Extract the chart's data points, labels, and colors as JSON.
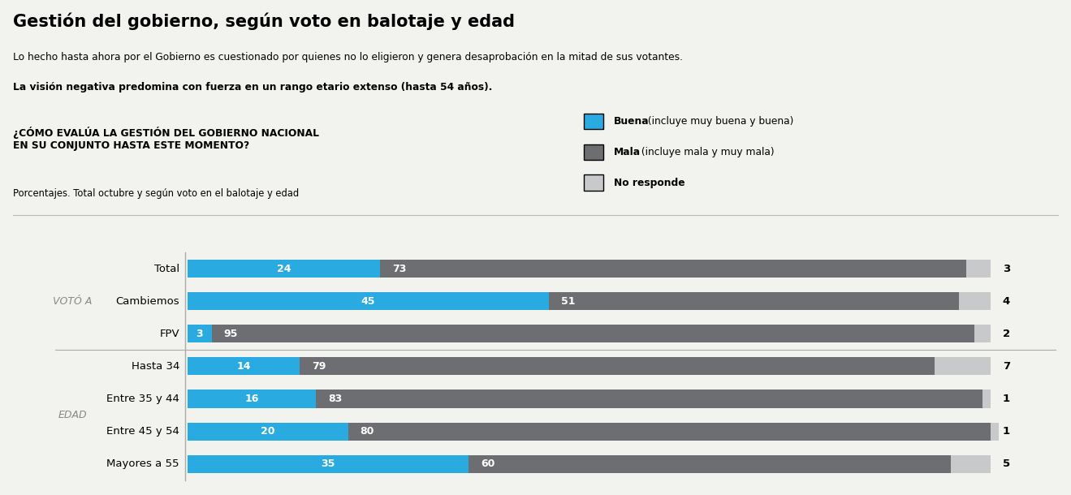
{
  "title": "Gestión del gobierno, según voto en balotaje y edad",
  "subtitle1": "Lo hecho hasta ahora por el Gobierno es cuestionado por quienes no lo eligieron y genera desaprobación en la mitad de sus votantes.",
  "subtitle2": "La visión negativa predomina con fuerza en un rango etario extenso (hasta 54 años).",
  "question": "¿CÓMO EVALÚA LA GESTIÓN DEL GOBIERNO NACIONAL\nEN SU CONJUNTO HASTA ESTE MOMENTO?",
  "question_sub": "Porcentajes. Total octubre y según voto en el balotaje y edad",
  "legend_items": [
    {
      "label": "Buena",
      "label_rest": " (incluye muy buena y buena)",
      "color": "#29abe2"
    },
    {
      "label": "Mala",
      "label_rest": " (incluye mala y muy mala)",
      "color": "#6d6e71"
    },
    {
      "label": "No responde",
      "label_rest": "",
      "color": "#c8c9cb"
    }
  ],
  "group_labels": [
    "VOTÓ A",
    "EDAD"
  ],
  "data": [
    {
      "label": "Total",
      "buena": 24,
      "mala": 73,
      "nr": 3
    },
    {
      "label": "Cambiemos",
      "buena": 45,
      "mala": 51,
      "nr": 4
    },
    {
      "label": "FPV",
      "buena": 3,
      "mala": 95,
      "nr": 2
    },
    {
      "label": "Hasta 34",
      "buena": 14,
      "mala": 79,
      "nr": 7
    },
    {
      "label": "Entre 35 y 44",
      "buena": 16,
      "mala": 83,
      "nr": 1
    },
    {
      "label": "Entre 45 y 54",
      "buena": 20,
      "mala": 80,
      "nr": 1
    },
    {
      "label": "Mayores a 55",
      "buena": 35,
      "mala": 60,
      "nr": 5
    }
  ],
  "color_buena": "#29abe2",
  "color_mala": "#6d6e71",
  "color_nr": "#c8c9cb",
  "bg_color": "#f2f2ee",
  "divider_color": "#aaaaaa"
}
